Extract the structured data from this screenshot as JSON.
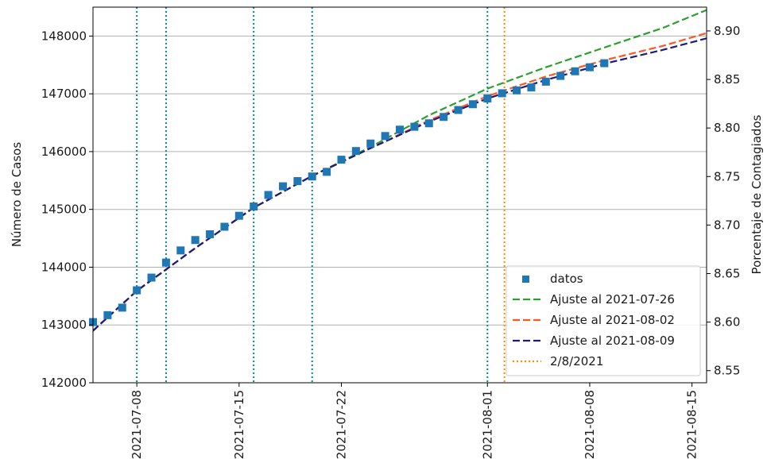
{
  "chart_data": {
    "type": "line",
    "title": "",
    "xlabel": "",
    "ylabel": "Número de Casos",
    "y2label": "Porcentaje de Contagiados",
    "x_tick_labels": [
      "2021-07-08",
      "2021-07-15",
      "2021-07-22",
      "2021-08-01",
      "2021-08-08",
      "2021-08-15"
    ],
    "y_ticks": [
      "142000",
      "143000",
      "144000",
      "145000",
      "146000",
      "147000",
      "148000"
    ],
    "y2_ticks": [
      "8.55",
      "8.60",
      "8.65",
      "8.70",
      "8.75",
      "8.80",
      "8.85",
      "8.90"
    ],
    "xlim": [
      "2021-07-05",
      "2021-08-16"
    ],
    "ylim": [
      142000,
      148500
    ],
    "y2lim": [
      8.5375,
      8.9245
    ],
    "grid": "y",
    "legend_position": "lower-right",
    "vertical_lines": {
      "teal_dates": [
        "2021-07-08",
        "2021-07-10",
        "2021-07-16",
        "2021-07-20",
        "2021-08-01"
      ],
      "highlight": {
        "name": "2/8/2021",
        "date": "2021-08-02"
      }
    },
    "series": [
      {
        "name": "datos",
        "style": "marker",
        "x": [
          "2021-07-05",
          "2021-07-06",
          "2021-07-07",
          "2021-07-08",
          "2021-07-09",
          "2021-07-10",
          "2021-07-11",
          "2021-07-12",
          "2021-07-13",
          "2021-07-14",
          "2021-07-15",
          "2021-07-16",
          "2021-07-17",
          "2021-07-18",
          "2021-07-19",
          "2021-07-20",
          "2021-07-21",
          "2021-07-22",
          "2021-07-23",
          "2021-07-24",
          "2021-07-25",
          "2021-07-26",
          "2021-07-27",
          "2021-07-28",
          "2021-07-29",
          "2021-07-30",
          "2021-07-31",
          "2021-08-01",
          "2021-08-02",
          "2021-08-03",
          "2021-08-04",
          "2021-08-05",
          "2021-08-06",
          "2021-08-07",
          "2021-08-08",
          "2021-08-09"
        ],
        "y": [
          143050,
          143170,
          143300,
          143600,
          143820,
          144080,
          144290,
          144470,
          144570,
          144700,
          144890,
          145050,
          145250,
          145400,
          145490,
          145570,
          145650,
          145860,
          146010,
          146140,
          146270,
          146380,
          146430,
          146490,
          146600,
          146720,
          146820,
          146920,
          147010,
          147060,
          147110,
          147210,
          147310,
          147390,
          147460,
          147530
        ]
      },
      {
        "name": "Ajuste al 2021-07-26",
        "style": "dashed",
        "x": [
          "2021-07-05",
          "2021-07-08",
          "2021-07-12",
          "2021-07-16",
          "2021-07-20",
          "2021-07-24",
          "2021-07-28",
          "2021-08-01",
          "2021-08-05",
          "2021-08-09",
          "2021-08-13",
          "2021-08-16"
        ],
        "y": [
          142900,
          143590,
          144330,
          145030,
          145580,
          146080,
          146630,
          147090,
          147460,
          147800,
          148140,
          148450
        ]
      },
      {
        "name": "Ajuste al 2021-08-02",
        "style": "dashed",
        "x": [
          "2021-07-05",
          "2021-07-08",
          "2021-07-12",
          "2021-07-16",
          "2021-07-20",
          "2021-07-24",
          "2021-07-28",
          "2021-08-01",
          "2021-08-05",
          "2021-08-09",
          "2021-08-13",
          "2021-08-16"
        ],
        "y": [
          142900,
          143590,
          144330,
          145030,
          145580,
          146060,
          146540,
          146960,
          147300,
          147580,
          147830,
          148050
        ]
      },
      {
        "name": "Ajuste al 2021-08-09",
        "style": "dashed",
        "x": [
          "2021-07-05",
          "2021-07-08",
          "2021-07-12",
          "2021-07-16",
          "2021-07-20",
          "2021-07-24",
          "2021-07-28",
          "2021-08-01",
          "2021-08-05",
          "2021-08-09",
          "2021-08-13",
          "2021-08-16"
        ],
        "y": [
          142900,
          143590,
          144330,
          145030,
          145580,
          146060,
          146520,
          146920,
          147240,
          147520,
          147760,
          147960
        ]
      }
    ]
  },
  "colors": {
    "datos": "#1f77b4",
    "ajuste_0726": "#2ca02c",
    "ajuste_0802": "#ff5722",
    "ajuste_0809": "#1a1a80",
    "teal_lines": "#008b8b",
    "highlight_line": "#ff8c00",
    "grid": "#b0b0b0"
  }
}
